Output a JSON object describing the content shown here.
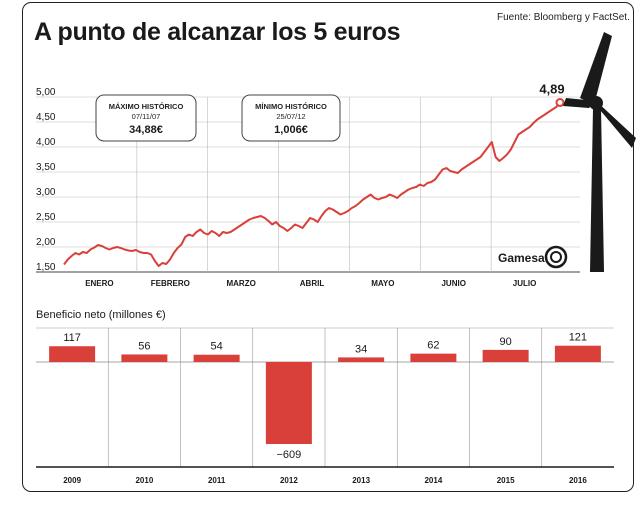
{
  "header": {
    "title": "A punto de alcanzar los 5 euros",
    "source": "Fuente: Bloomberg y FactSet."
  },
  "brand": {
    "logo_text": "Gamesa"
  },
  "colors": {
    "accent": "#d9403a",
    "text": "#1a1a1a",
    "grid": "#bbbbbb"
  },
  "chart_data": [
    {
      "type": "line",
      "title": "",
      "ylim": [
        1.5,
        5.0
      ],
      "y_ticks": [
        "1,50",
        "2,00",
        "2,50",
        "3,00",
        "3,50",
        "4,00",
        "4,50",
        "5,00"
      ],
      "y_tick_values": [
        1.5,
        2.0,
        2.5,
        3.0,
        3.5,
        4.0,
        4.5,
        5.0
      ],
      "month_labels": [
        "ENERO",
        "FEBRERO",
        "MARZO",
        "ABRIL",
        "MAYO",
        "JUNIO",
        "JULIO"
      ],
      "series": [
        {
          "values": [
            1.65,
            1.75,
            1.82,
            1.88,
            1.85,
            1.9,
            1.88,
            1.95,
            1.99,
            2.04,
            2.02,
            1.98,
            1.95,
            1.98,
            2.0,
            1.98,
            1.95,
            1.93,
            1.92,
            1.94,
            1.9,
            1.88,
            1.88,
            1.85,
            1.72,
            1.62,
            1.68,
            1.66,
            1.75,
            1.88,
            1.98,
            2.05,
            2.2,
            2.25,
            2.22,
            2.3,
            2.35,
            2.28,
            2.25,
            2.32,
            2.28,
            2.22,
            2.3,
            2.28,
            2.3,
            2.35,
            2.4,
            2.45,
            2.5,
            2.55,
            2.58,
            2.6,
            2.62,
            2.58,
            2.52,
            2.45,
            2.5,
            2.42,
            2.38,
            2.32,
            2.38,
            2.45,
            2.42,
            2.38,
            2.48,
            2.58,
            2.55,
            2.5,
            2.62,
            2.72,
            2.78,
            2.75,
            2.7,
            2.65,
            2.68,
            2.72,
            2.78,
            2.82,
            2.88,
            2.95,
            3.0,
            3.05,
            2.98,
            2.95,
            2.98,
            3.0,
            3.05,
            3.02,
            2.98,
            3.05,
            3.1,
            3.15,
            3.18,
            3.2,
            3.25,
            3.22,
            3.28,
            3.3,
            3.35,
            3.45,
            3.55,
            3.58,
            3.52,
            3.5,
            3.48,
            3.55,
            3.6,
            3.65,
            3.7,
            3.75,
            3.8,
            3.9,
            4.0,
            4.1,
            3.8,
            3.72,
            3.78,
            3.85,
            3.95,
            4.1,
            4.25,
            4.3,
            4.35,
            4.4,
            4.48,
            4.55,
            4.6,
            4.65,
            4.7,
            4.75,
            4.8,
            4.89
          ]
        }
      ],
      "annotations": [
        {
          "label": "MÁXIMO HISTÓRICO",
          "date": "07/11/07",
          "value": "34,88€"
        },
        {
          "label": "MÍNIMO HISTÓRICO",
          "date": "25/07/12",
          "value": "1,006€"
        }
      ],
      "last_value_label": "4,89"
    },
    {
      "type": "bar",
      "title": "Beneficio neto (millones €)",
      "categories": [
        "2009",
        "2010",
        "2011",
        "2012",
        "2013",
        "2014",
        "2015",
        "2016"
      ],
      "values": [
        117,
        56,
        54,
        -609,
        34,
        62,
        90,
        121
      ],
      "value_labels": [
        "117",
        "56",
        "54",
        "−609",
        "34",
        "62",
        "90",
        "121"
      ]
    }
  ]
}
